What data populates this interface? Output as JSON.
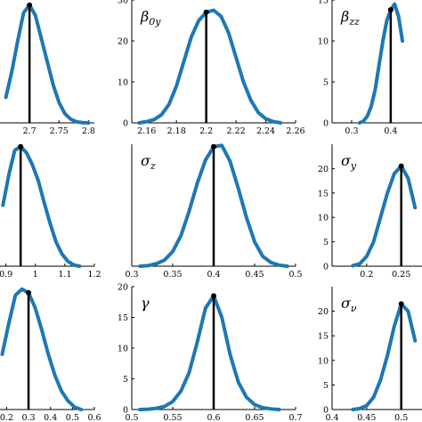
{
  "colors": {
    "curve": "#1f77b4",
    "marker": "#000000"
  },
  "chart_data": [
    {
      "type": "line",
      "title": "",
      "xlim": [
        2.65,
        2.81
      ],
      "ylim": [
        0,
        24
      ],
      "xticks": [
        2.7,
        2.75,
        2.8
      ],
      "xtick_labels": [
        "2.7",
        "2.75",
        "2.8"
      ],
      "yticks": [],
      "ytick_labels": [],
      "true_value": 2.7,
      "series": [
        {
          "x": [
            2.66,
            2.67,
            2.68,
            2.69,
            2.7,
            2.71,
            2.72,
            2.73,
            2.74,
            2.75,
            2.76,
            2.77,
            2.78,
            2.79,
            2.8
          ],
          "y": [
            5,
            10,
            16,
            21.5,
            23,
            21,
            16.5,
            12,
            7.5,
            4,
            1.8,
            0.7,
            0.2,
            0.05,
            0
          ]
        }
      ]
    },
    {
      "type": "line",
      "title": "β_0y",
      "title_main": "β",
      "title_sub": "0y",
      "xlim": [
        2.15,
        2.26
      ],
      "ylim": [
        0,
        30
      ],
      "xticks": [
        2.16,
        2.18,
        2.2,
        2.22,
        2.24,
        2.26
      ],
      "xtick_labels": [
        "2.16",
        "2.18",
        "2.2",
        "2.22",
        "2.24",
        "2.26"
      ],
      "yticks": [
        0,
        10,
        20,
        30
      ],
      "ytick_labels": [
        "0",
        "10",
        "20",
        "30"
      ],
      "true_value": 2.2,
      "series": [
        {
          "x": [
            2.155,
            2.16,
            2.165,
            2.17,
            2.175,
            2.18,
            2.185,
            2.19,
            2.195,
            2.2,
            2.205,
            2.21,
            2.215,
            2.22,
            2.225,
            2.23,
            2.235,
            2.24,
            2.245,
            2.25
          ],
          "y": [
            0,
            0.3,
            0.8,
            2,
            4.5,
            9,
            15,
            21,
            25,
            27,
            27.5,
            26,
            22,
            16,
            10,
            5.5,
            2.5,
            1,
            0.3,
            0
          ]
        }
      ]
    },
    {
      "type": "line",
      "title": "β_zz",
      "title_main": "β",
      "title_sub": "zz",
      "xlim": [
        0.25,
        0.48
      ],
      "ylim": [
        0,
        15
      ],
      "xticks": [
        0.3,
        0.4
      ],
      "xtick_labels": [
        "0.3",
        "0.4"
      ],
      "yticks": [
        0,
        5,
        10,
        15
      ],
      "ytick_labels": [
        "0",
        "5",
        "10",
        "15"
      ],
      "true_value": 0.4,
      "series": [
        {
          "x": [
            0.32,
            0.33,
            0.34,
            0.35,
            0.36,
            0.37,
            0.38,
            0.39,
            0.4,
            0.41,
            0.42,
            0.43
          ],
          "y": [
            0,
            0.2,
            0.8,
            2,
            4,
            7,
            10,
            12.5,
            13.8,
            14.5,
            13,
            10
          ]
        }
      ]
    },
    {
      "type": "line",
      "title": "",
      "xlim": [
        0.88,
        1.2
      ],
      "ylim": [
        0,
        10
      ],
      "xticks": [
        0.9,
        1,
        1.1,
        1.2
      ],
      "xtick_labels": [
        "0.9",
        "1",
        "1.1",
        "1.2"
      ],
      "yticks": [],
      "ytick_labels": [],
      "true_value": 0.95,
      "series": [
        {
          "x": [
            0.89,
            0.91,
            0.93,
            0.95,
            0.97,
            0.99,
            1.01,
            1.03,
            1.05,
            1.07,
            1.09,
            1.11,
            1.13,
            1.15
          ],
          "y": [
            5,
            7.5,
            9.5,
            9.8,
            9.3,
            8.3,
            7,
            5.2,
            3.5,
            2,
            1,
            0.4,
            0.1,
            0
          ]
        }
      ]
    },
    {
      "type": "line",
      "title": "σ_z",
      "title_main": "σ",
      "title_sub": "z",
      "xlim": [
        0.3,
        0.5
      ],
      "ylim": [
        0,
        10
      ],
      "xticks": [
        0.3,
        0.35,
        0.4,
        0.45,
        0.5
      ],
      "xtick_labels": [
        "0.3",
        "0.35",
        "0.4",
        "0.45",
        "0.5"
      ],
      "yticks": [],
      "ytick_labels": [],
      "true_value": 0.4,
      "series": [
        {
          "x": [
            0.31,
            0.32,
            0.33,
            0.34,
            0.35,
            0.36,
            0.37,
            0.38,
            0.39,
            0.4,
            0.41,
            0.42,
            0.43,
            0.44,
            0.45,
            0.46,
            0.47,
            0.48,
            0.49
          ],
          "y": [
            0,
            0.05,
            0.2,
            0.5,
            1.2,
            2.5,
            4.5,
            6.8,
            8.7,
            9.8,
            9.9,
            8.6,
            6.4,
            4,
            2,
            0.8,
            0.3,
            0.08,
            0
          ]
        }
      ]
    },
    {
      "type": "line",
      "title": "σ_y",
      "title_main": "σ",
      "title_sub": "y",
      "xlim": [
        0.15,
        0.28
      ],
      "ylim": [
        0,
        25
      ],
      "xticks": [
        0.2,
        0.25
      ],
      "xtick_labels": [
        "0.2",
        "0.25"
      ],
      "yticks": [
        0,
        5,
        10,
        15,
        20
      ],
      "ytick_labels": [
        "0",
        "5",
        "10",
        "15",
        "20"
      ],
      "true_value": 0.25,
      "series": [
        {
          "x": [
            0.18,
            0.19,
            0.2,
            0.21,
            0.22,
            0.23,
            0.24,
            0.25,
            0.26,
            0.27
          ],
          "y": [
            0.1,
            0.5,
            2,
            5,
            10,
            15,
            19,
            20.5,
            18,
            12
          ]
        }
      ]
    },
    {
      "type": "line",
      "title": "",
      "xlim": [
        0.17,
        0.6
      ],
      "ylim": [
        0,
        10
      ],
      "xticks": [
        0.2,
        0.3,
        0.4,
        0.5,
        0.6
      ],
      "xtick_labels": [
        "0.2",
        "0.3",
        "0.4",
        "0.5",
        "0.6"
      ],
      "yticks": [],
      "ytick_labels": [],
      "true_value": 0.3,
      "series": [
        {
          "x": [
            0.18,
            0.21,
            0.24,
            0.27,
            0.3,
            0.33,
            0.36,
            0.39,
            0.42,
            0.45,
            0.48,
            0.51,
            0.54
          ],
          "y": [
            4.5,
            7,
            9.3,
            9.8,
            9.5,
            8.3,
            6.5,
            4.5,
            2.8,
            1.5,
            0.7,
            0.2,
            0
          ]
        }
      ]
    },
    {
      "type": "line",
      "title": "γ",
      "title_main": "γ",
      "title_sub": "",
      "xlim": [
        0.5,
        0.7
      ],
      "ylim": [
        0,
        20
      ],
      "xticks": [
        0.5,
        0.55,
        0.6,
        0.65,
        0.7
      ],
      "xtick_labels": [
        "0.5",
        "0.55",
        "0.6",
        "0.65",
        "0.7"
      ],
      "yticks": [
        0,
        5,
        10,
        15,
        20
      ],
      "ytick_labels": [
        "0",
        "5",
        "10",
        "15",
        "20"
      ],
      "true_value": 0.6,
      "series": [
        {
          "x": [
            0.51,
            0.52,
            0.53,
            0.54,
            0.55,
            0.56,
            0.57,
            0.58,
            0.59,
            0.6,
            0.61,
            0.62,
            0.63,
            0.64,
            0.65,
            0.66,
            0.67,
            0.68
          ],
          "y": [
            0,
            0.05,
            0.2,
            0.5,
            1.3,
            3,
            6,
            11,
            16.5,
            18.5,
            15,
            9,
            4.5,
            2,
            0.8,
            0.3,
            0.1,
            0
          ]
        }
      ]
    },
    {
      "type": "line",
      "title": "σ_ν",
      "title_main": "σ",
      "title_sub": "ν",
      "xlim": [
        0.4,
        0.53
      ],
      "ylim": [
        0,
        25
      ],
      "xticks": [
        0.4,
        0.45,
        0.5
      ],
      "xtick_labels": [
        "0.4",
        "0.45",
        "0.5"
      ],
      "yticks": [
        0,
        5,
        10,
        15,
        20
      ],
      "ytick_labels": [
        "0",
        "5",
        "10",
        "15",
        "20"
      ],
      "true_value": 0.5,
      "series": [
        {
          "x": [
            0.43,
            0.44,
            0.45,
            0.46,
            0.47,
            0.48,
            0.49,
            0.5,
            0.51,
            0.52
          ],
          "y": [
            0,
            0.2,
            0.8,
            2.5,
            6,
            11,
            17,
            21.5,
            20,
            14
          ]
        }
      ]
    }
  ]
}
